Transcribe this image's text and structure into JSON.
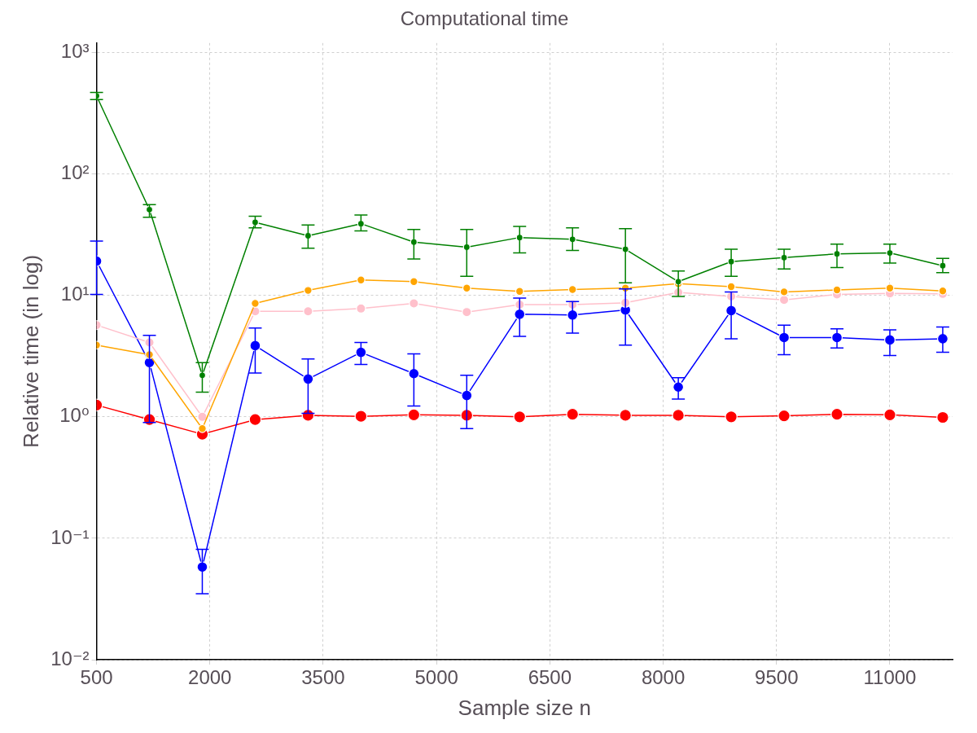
{
  "chart_data": {
    "type": "line",
    "title": "Computational time",
    "xlabel": "Sample size n",
    "ylabel": "Relative time (in log)",
    "x": [
      500,
      1200,
      1900,
      2600,
      3300,
      4000,
      4700,
      5400,
      6100,
      6800,
      7500,
      8200,
      8900,
      9600,
      10300,
      11000,
      11700
    ],
    "xlim": [
      500,
      11830
    ],
    "xticks": [
      500,
      2000,
      3500,
      5000,
      6500,
      8000,
      9500,
      11000
    ],
    "ylim": [
      0.01,
      1200
    ],
    "yticks": [
      {
        "value": 0.01,
        "label": "10⁻²"
      },
      {
        "value": 0.1,
        "label": "10⁻¹"
      },
      {
        "value": 1,
        "label": "10⁰"
      },
      {
        "value": 10,
        "label": "10¹"
      },
      {
        "value": 100,
        "label": "10²"
      },
      {
        "value": 1000,
        "label": "10³"
      }
    ],
    "log": "y",
    "grid": true,
    "legend": false,
    "marker": "circle",
    "line_style": "solid",
    "series": [
      {
        "color": "#008000",
        "values": [
          440,
          51,
          2.2,
          40,
          31,
          39,
          27.5,
          25,
          30,
          29,
          24,
          13,
          19,
          20.5,
          22,
          22.4,
          17.6
        ],
        "errors": [
          [
            410,
            470
          ],
          [
            44,
            56
          ],
          [
            1.6,
            2.8
          ],
          [
            36,
            45
          ],
          [
            24.5,
            38
          ],
          [
            34,
            46
          ],
          [
            20,
            35
          ],
          [
            14.4,
            35
          ],
          [
            22.4,
            37
          ],
          [
            23.5,
            36
          ],
          [
            12.7,
            35.5
          ],
          [
            9.8,
            15.9
          ],
          [
            14.4,
            24
          ],
          [
            16.5,
            24
          ],
          [
            17,
            26.5
          ],
          [
            18.5,
            26.5
          ],
          [
            15.4,
            20.2
          ]
        ]
      },
      {
        "color": "#ffa500",
        "values": [
          3.9,
          3.25,
          0.8,
          8.6,
          11,
          13.4,
          13,
          11.5,
          10.8,
          11.2,
          11.5,
          12.5,
          11.8,
          10.7,
          11.1,
          11.5,
          10.9
        ]
      },
      {
        "color": "#ffc0cb",
        "values": [
          5.7,
          4.1,
          1.0,
          7.4,
          7.4,
          7.8,
          8.6,
          7.3,
          8.4,
          8.4,
          8.7,
          10.6,
          9.8,
          9.2,
          10.2,
          10.4,
          10.3
        ]
      },
      {
        "color": "#0000ff",
        "values": [
          19.2,
          2.8,
          0.058,
          3.86,
          2.05,
          3.4,
          2.27,
          1.5,
          7,
          6.9,
          7.6,
          1.76,
          7.5,
          4.5,
          4.5,
          4.3,
          4.4
        ],
        "errors": [
          [
            10.2,
            28
          ],
          [
            0.9,
            4.7
          ],
          [
            0.035,
            0.081
          ],
          [
            2.3,
            5.4
          ],
          [
            1.07,
            3.0
          ],
          [
            2.7,
            4.1
          ],
          [
            1.23,
            3.3
          ],
          [
            0.8,
            2.2
          ],
          [
            4.6,
            9.5
          ],
          [
            4.9,
            8.9
          ],
          [
            3.9,
            11.3
          ],
          [
            1.4,
            2.1
          ],
          [
            4.4,
            10.7
          ],
          [
            3.25,
            5.7
          ],
          [
            3.7,
            5.3
          ],
          [
            3.2,
            5.2
          ],
          [
            3.4,
            5.5
          ]
        ]
      },
      {
        "color": "#ff0000",
        "values": [
          1.25,
          0.95,
          0.72,
          0.95,
          1.03,
          1.01,
          1.04,
          1.03,
          1.0,
          1.05,
          1.03,
          1.03,
          1.0,
          1.02,
          1.05,
          1.04,
          0.99
        ]
      }
    ]
  }
}
